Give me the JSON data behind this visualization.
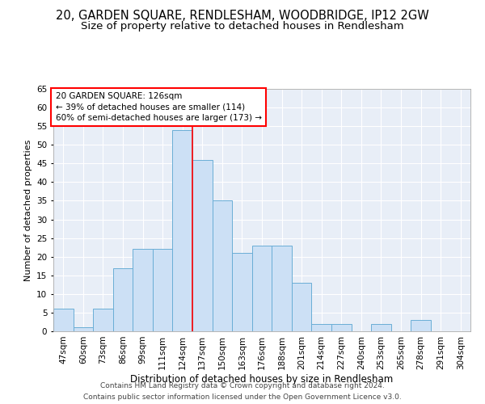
{
  "title": "20, GARDEN SQUARE, RENDLESHAM, WOODBRIDGE, IP12 2GW",
  "subtitle": "Size of property relative to detached houses in Rendlesham",
  "xlabel": "Distribution of detached houses by size in Rendlesham",
  "ylabel": "Number of detached properties",
  "categories": [
    "47sqm",
    "60sqm",
    "73sqm",
    "86sqm",
    "99sqm",
    "111sqm",
    "124sqm",
    "137sqm",
    "150sqm",
    "163sqm",
    "176sqm",
    "188sqm",
    "201sqm",
    "214sqm",
    "227sqm",
    "240sqm",
    "253sqm",
    "265sqm",
    "278sqm",
    "291sqm",
    "304sqm"
  ],
  "values": [
    6,
    1,
    6,
    17,
    22,
    22,
    54,
    46,
    35,
    21,
    23,
    23,
    13,
    2,
    2,
    0,
    2,
    0,
    3,
    0,
    0
  ],
  "bar_color": "#cce0f5",
  "bar_edge_color": "#6aaed6",
  "red_line_x": 6.5,
  "annotation_lines": [
    "20 GARDEN SQUARE: 126sqm",
    "← 39% of detached houses are smaller (114)",
    "60% of semi-detached houses are larger (173) →"
  ],
  "footer_line1": "Contains HM Land Registry data © Crown copyright and database right 2024.",
  "footer_line2": "Contains public sector information licensed under the Open Government Licence v3.0.",
  "ylim": [
    0,
    65
  ],
  "yticks": [
    0,
    5,
    10,
    15,
    20,
    25,
    30,
    35,
    40,
    45,
    50,
    55,
    60,
    65
  ],
  "bg_color": "#e8eef7",
  "fig_bg_color": "#ffffff",
  "grid_color": "#ffffff",
  "title_fontsize": 10.5,
  "subtitle_fontsize": 9.5,
  "xlabel_fontsize": 8.5,
  "ylabel_fontsize": 8,
  "annotation_fontsize": 7.5,
  "footer_fontsize": 6.5,
  "tick_fontsize": 7.5
}
